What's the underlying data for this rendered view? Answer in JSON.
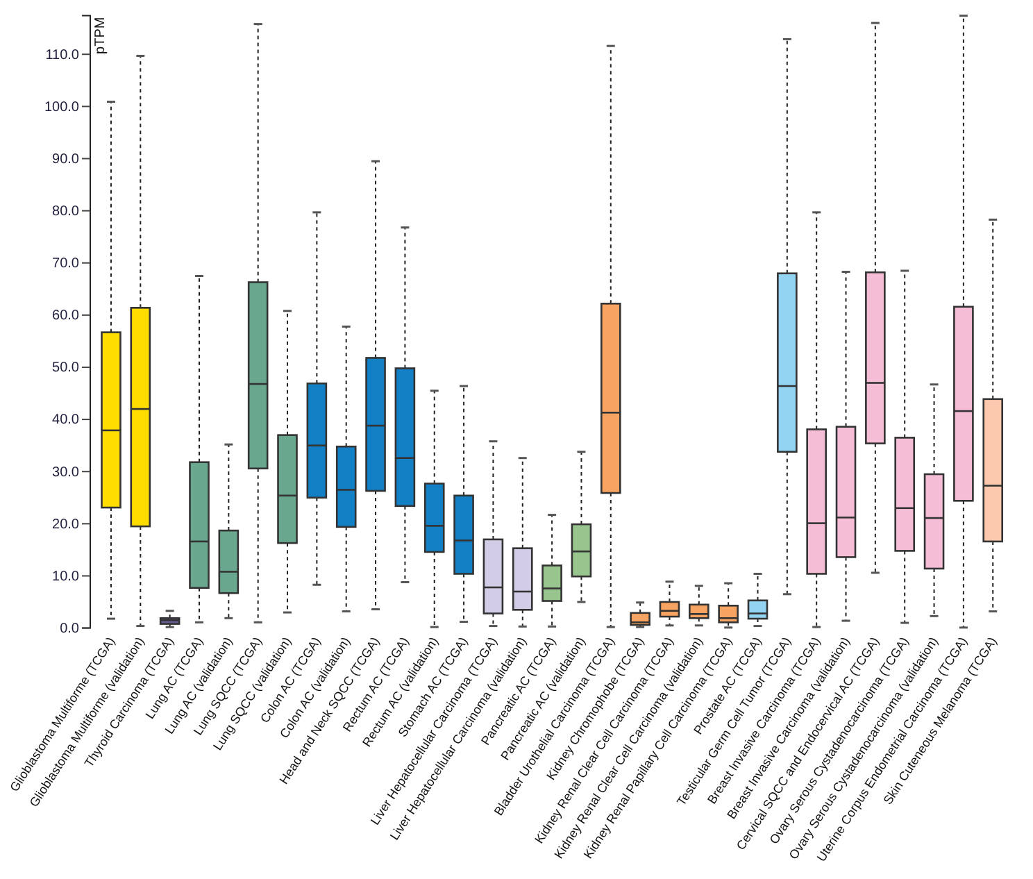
{
  "chart_data": {
    "type": "box",
    "ylabel": "pTPM",
    "categories": [
      "Glioblastoma Multiforme (TCGA)",
      "Glioblastoma Multiforme (validation)",
      "Thyroid Carcinoma (TCGA)",
      "Lung AC (TCGA)",
      "Lung AC (validation)",
      "Lung SQCC (TCGA)",
      "Lung SQCC (validation)",
      "Colon AC (TCGA)",
      "Colon AC (validation)",
      "Head and Neck SQCC (TCGA)",
      "Rectum AC (TCGA)",
      "Rectum AC (validation)",
      "Stomach AC (TCGA)",
      "Liver Hepatocellular Carcinoma (TCGA)",
      "Liver Hepatocellular Carcinoma (validation)",
      "Pancreatic AC (TCGA)",
      "Pancreatic AC (validation)",
      "Bladder Urothelial Carcinoma (TCGA)",
      "Kidney Chromophobe (TCGA)",
      "Kidney Renal Clear Cell Carcinoma (TCGA)",
      "Kidney Renal Clear Cell Carcinoma (validation)",
      "Kidney Renal Papillary Cell Carcinoma (TCGA)",
      "Prostate AC (TCGA)",
      "Testicular Germ Cell Tumor (TCGA)",
      "Breast Invasive Carcinoma (TCGA)",
      "Breast Invasive Carcinoma (validation)",
      "Cervical SQCC and Endocervical AC (TCGA)",
      "Ovary Serous Cystadenocarcinoma (TCGA)",
      "Ovary Serous Cystadenocarcinoma (validation)",
      "Uterine Corpus Endometrial Carcinoma (TCGA)",
      "Skin Cuteneous Melanoma (TCGA)"
    ],
    "boxes": [
      {
        "low": 1.8,
        "q1": 23.1,
        "median": 37.9,
        "q3": 56.7,
        "high": 100.9
      },
      {
        "low": 0.4,
        "q1": 19.5,
        "median": 42.0,
        "q3": 61.4,
        "high": 109.7
      },
      {
        "low": 0.2,
        "q1": 0.8,
        "median": 1.5,
        "q3": 1.9,
        "high": 3.3
      },
      {
        "low": 1.1,
        "q1": 7.7,
        "median": 16.6,
        "q3": 31.8,
        "high": 67.5
      },
      {
        "low": 1.9,
        "q1": 6.7,
        "median": 10.8,
        "q3": 18.7,
        "high": 35.2
      },
      {
        "low": 1.1,
        "q1": 30.6,
        "median": 46.8,
        "q3": 66.3,
        "high": 115.8
      },
      {
        "low": 3.0,
        "q1": 16.3,
        "median": 25.4,
        "q3": 37.0,
        "high": 60.8
      },
      {
        "low": 8.3,
        "q1": 25.0,
        "median": 35.0,
        "q3": 46.9,
        "high": 79.7
      },
      {
        "low": 3.2,
        "q1": 19.4,
        "median": 26.5,
        "q3": 34.8,
        "high": 57.8
      },
      {
        "low": 3.6,
        "q1": 26.3,
        "median": 38.8,
        "q3": 51.8,
        "high": 89.5
      },
      {
        "low": 8.8,
        "q1": 23.4,
        "median": 32.6,
        "q3": 49.8,
        "high": 76.8
      },
      {
        "low": 0.2,
        "q1": 14.6,
        "median": 19.6,
        "q3": 27.7,
        "high": 45.5
      },
      {
        "low": 1.2,
        "q1": 10.4,
        "median": 16.8,
        "q3": 25.4,
        "high": 46.4
      },
      {
        "low": 0.4,
        "q1": 2.8,
        "median": 7.8,
        "q3": 17.0,
        "high": 35.8
      },
      {
        "low": 0.3,
        "q1": 3.5,
        "median": 7.0,
        "q3": 15.3,
        "high": 32.6
      },
      {
        "low": 0.3,
        "q1": 5.2,
        "median": 7.6,
        "q3": 12.0,
        "high": 21.7
      },
      {
        "low": 5.0,
        "q1": 9.9,
        "median": 14.7,
        "q3": 19.9,
        "high": 33.8
      },
      {
        "low": 0.2,
        "q1": 25.9,
        "median": 41.3,
        "q3": 62.2,
        "high": 111.6
      },
      {
        "low": 0.2,
        "q1": 0.6,
        "median": 1.1,
        "q3": 2.9,
        "high": 4.9
      },
      {
        "low": 0.5,
        "q1": 2.2,
        "median": 3.3,
        "q3": 5.0,
        "high": 8.9
      },
      {
        "low": 0.5,
        "q1": 1.9,
        "median": 2.7,
        "q3": 4.5,
        "high": 8.1
      },
      {
        "low": 0.1,
        "q1": 1.1,
        "median": 1.9,
        "q3": 4.3,
        "high": 8.6
      },
      {
        "low": 0.4,
        "q1": 1.8,
        "median": 2.8,
        "q3": 5.3,
        "high": 10.4
      },
      {
        "low": 6.5,
        "q1": 33.8,
        "median": 46.4,
        "q3": 68.0,
        "high": 112.9
      },
      {
        "low": 0.2,
        "q1": 10.4,
        "median": 20.1,
        "q3": 38.1,
        "high": 79.7
      },
      {
        "low": 1.4,
        "q1": 13.6,
        "median": 21.2,
        "q3": 38.6,
        "high": 68.3
      },
      {
        "low": 10.6,
        "q1": 35.4,
        "median": 47.0,
        "q3": 68.2,
        "high": 116.0
      },
      {
        "low": 1.0,
        "q1": 14.8,
        "median": 23.0,
        "q3": 36.5,
        "high": 68.5
      },
      {
        "low": 2.3,
        "q1": 11.4,
        "median": 21.1,
        "q3": 29.5,
        "high": 46.7
      },
      {
        "low": 0.1,
        "q1": 24.4,
        "median": 41.6,
        "q3": 61.6,
        "high": 117.4
      },
      {
        "low": 3.2,
        "q1": 16.6,
        "median": 27.3,
        "q3": 43.9,
        "high": 78.3
      }
    ],
    "colors": [
      "#ffdd00",
      "#ffdd00",
      "#6b5b95",
      "#69a78f",
      "#69a78f",
      "#69a78f",
      "#69a78f",
      "#1380c6",
      "#1380c6",
      "#1380c6",
      "#1380c6",
      "#1380c6",
      "#1380c6",
      "#d3cce6",
      "#d3cce6",
      "#98c48e",
      "#98c48e",
      "#f7a361",
      "#f7a361",
      "#f7a361",
      "#f7a361",
      "#f7a361",
      "#94d4f3",
      "#94d4f3",
      "#f6bdd7",
      "#f6bdd7",
      "#f6bdd7",
      "#f6bdd7",
      "#f6bdd7",
      "#f6bdd7",
      "#fcc8ae"
    ],
    "ylim": [
      0,
      117.4
    ],
    "yticks": [
      {
        "value": 0,
        "label": "0.0"
      },
      {
        "value": 10,
        "label": "10.0"
      },
      {
        "value": 20,
        "label": "20.0"
      },
      {
        "value": 30,
        "label": "30.0"
      },
      {
        "value": 40,
        "label": "40.0"
      },
      {
        "value": 50,
        "label": "50.0"
      },
      {
        "value": 60,
        "label": "60.0"
      },
      {
        "value": 70,
        "label": "70.0"
      },
      {
        "value": 80,
        "label": "80.0"
      },
      {
        "value": 90,
        "label": "90.0"
      },
      {
        "value": 100,
        "label": "100.0"
      },
      {
        "value": 110,
        "label": "110.0"
      }
    ]
  }
}
